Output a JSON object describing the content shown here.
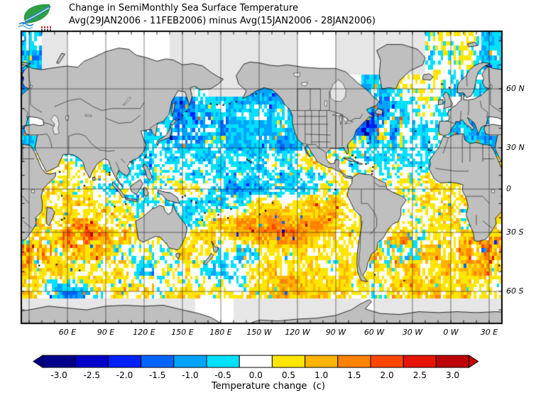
{
  "header": {
    "line1": "Change in SemiMonthly Sea Surface Temperature",
    "line2": "Avg(29JAN2006 - 11FEB2006) minus Avg(15JAN2006 - 28JAN2006)"
  },
  "logo": {
    "icon": "grads-cola-leaf-logo"
  },
  "map": {
    "lon_ticks": [
      {
        "label": "60 E",
        "lon": 60
      },
      {
        "label": "90 E",
        "lon": 90
      },
      {
        "label": "120 E",
        "lon": 120
      },
      {
        "label": "150 E",
        "lon": 150
      },
      {
        "label": "180 E",
        "lon": 180
      },
      {
        "label": "150 W",
        "lon": 210
      },
      {
        "label": "120 W",
        "lon": 240
      },
      {
        "label": "90 W",
        "lon": 270
      },
      {
        "label": "60 W",
        "lon": 300
      },
      {
        "label": "30 W",
        "lon": 330
      },
      {
        "label": "0 W",
        "lon": 360
      },
      {
        "label": "30 E",
        "lon": 390
      }
    ],
    "lat_ticks": [
      {
        "label": "60 N",
        "lat": 60
      },
      {
        "label": "30 N",
        "lat": 30
      },
      {
        "label": "0",
        "lat": 0
      },
      {
        "label": "30 S",
        "lat": -30
      },
      {
        "label": "60 S",
        "lat": -60
      }
    ]
  },
  "colorbar": {
    "tick_labels": [
      "-3.0",
      "-2.5",
      "-2.0",
      "-1.5",
      "-1.0",
      "-0.5",
      "0.0",
      "0.5",
      "1.0",
      "1.5",
      "2.0",
      "2.5",
      "3.0"
    ],
    "caption": "Temperature change  (c)",
    "segment_colors": [
      "#00008B",
      "#0000CD",
      "#0020FF",
      "#0064FF",
      "#00A4FF",
      "#00E0FF",
      "#FFFFFF",
      "#FFE600",
      "#FFB400",
      "#FF8200",
      "#FF4600",
      "#E41400",
      "#BE0000"
    ],
    "arrow_left_color": "#00008B",
    "arrow_right_color": "#C80000"
  },
  "chart_data": {
    "type": "heatmap",
    "title": "Change in SemiMonthly Sea Surface Temperature",
    "subtitle": "Avg(29JAN2006 - 11FEB2006) minus Avg(15JAN2006 - 28JAN2006)",
    "units": "c",
    "projection": "cylindrical, Pacific-centered",
    "lon_range": [
      24,
      400
    ],
    "lat_range": [
      -78,
      84
    ],
    "grid_line_interval_deg": 30,
    "levels": [
      -3.0,
      -2.5,
      -2.0,
      -1.5,
      -1.0,
      -0.5,
      0.0,
      0.5,
      1.0,
      1.5,
      2.0,
      2.5,
      3.0
    ],
    "colors": [
      "#00008B",
      "#0000CD",
      "#0020FF",
      "#0064FF",
      "#00A4FF",
      "#00E0FF",
      "#FFFFFF",
      "#FFE600",
      "#FFB400",
      "#FF8200",
      "#FF4600",
      "#E41400",
      "#BE0000"
    ],
    "land_color": "#BFBFBF",
    "no_data_color": "#E6E6E6",
    "ocean_color": "#FFFFFF",
    "land_value": null,
    "no_data_value": -9,
    "lon_centers": [
      25,
      35,
      45,
      55,
      65,
      75,
      85,
      95,
      105,
      115,
      125,
      135,
      145,
      155,
      165,
      175,
      185,
      195,
      205,
      215,
      225,
      235,
      245,
      255,
      265,
      275,
      285,
      295,
      305,
      315,
      325,
      335,
      345,
      355,
      365,
      375
    ],
    "lat_centers": [
      70,
      60,
      50,
      40,
      30,
      20,
      10,
      0,
      -10,
      -20,
      -30,
      -40,
      -50,
      -60,
      -70
    ],
    "values": [
      [
        -0.6,
        -0.6,
        -9,
        -9,
        null,
        null,
        null,
        null,
        null,
        null,
        null,
        null,
        -9,
        -9,
        -9,
        -9,
        -9,
        -9,
        -9,
        -9,
        -9,
        -9,
        null,
        null,
        null,
        -9,
        -9,
        -9,
        -9,
        -9,
        -9,
        -9,
        0.1,
        0.1,
        0.2,
        0.2
      ],
      [
        -0.8,
        null,
        null,
        null,
        null,
        null,
        null,
        null,
        null,
        null,
        null,
        null,
        -9,
        -9,
        -0.3,
        -9,
        -9,
        -9,
        -0.6,
        -0.6,
        -0.6,
        -0.4,
        null,
        null,
        null,
        null,
        null,
        -0.6,
        -0.4,
        -0.4,
        0.1,
        0.1,
        0.1,
        0.0,
        -0.2,
        -0.4
      ],
      [
        null,
        null,
        null,
        null,
        null,
        null,
        null,
        null,
        null,
        null,
        null,
        null,
        -1.1,
        -1.2,
        -0.9,
        -0.7,
        -0.6,
        -0.5,
        -0.5,
        -0.5,
        -0.4,
        -0.4,
        -0.3,
        null,
        null,
        null,
        null,
        -0.8,
        -1.3,
        -1.0,
        -0.4,
        -0.2,
        -0.1,
        -0.3,
        null,
        null
      ],
      [
        -0.7,
        null,
        null,
        null,
        null,
        null,
        null,
        null,
        null,
        null,
        -0.4,
        -0.6,
        -0.9,
        -0.8,
        -0.7,
        -0.6,
        -0.5,
        -0.5,
        -0.6,
        -0.7,
        -0.8,
        -0.7,
        -0.4,
        null,
        null,
        null,
        -0.6,
        -1.6,
        -1.2,
        -0.5,
        -0.3,
        -0.3,
        -0.3,
        -0.4,
        -0.7,
        -0.7
      ],
      [
        -0.8,
        -0.6,
        null,
        null,
        null,
        null,
        null,
        null,
        null,
        null,
        -0.3,
        -0.3,
        -0.3,
        -0.4,
        -0.5,
        -0.6,
        -0.6,
        -0.7,
        -0.7,
        -0.8,
        -0.8,
        -0.7,
        -0.5,
        -0.2,
        0.2,
        0.1,
        -0.2,
        -0.3,
        -0.4,
        -0.4,
        -0.4,
        -0.5,
        -0.4,
        -0.3,
        -0.6,
        -0.6
      ],
      [
        null,
        0.2,
        null,
        0.3,
        0.3,
        0.2,
        0.2,
        0.2,
        null,
        -0.4,
        -0.3,
        -0.3,
        -0.3,
        -0.3,
        -0.4,
        -0.4,
        -0.4,
        -0.4,
        -0.3,
        -0.3,
        -0.2,
        0.0,
        0.3,
        0.6,
        0.5,
        -0.2,
        -0.3,
        -0.3,
        -0.4,
        -0.4,
        -0.3,
        -0.4,
        -0.4,
        null,
        null,
        null
      ],
      [
        null,
        null,
        0.3,
        0.4,
        0.3,
        0.3,
        0.3,
        0.2,
        -0.2,
        -0.3,
        -0.2,
        -0.2,
        -0.2,
        -0.2,
        -0.3,
        -0.3,
        -0.3,
        -0.3,
        -0.4,
        -0.5,
        -0.5,
        -0.5,
        -0.5,
        -0.4,
        0.4,
        0.2,
        0.1,
        0.2,
        0.2,
        0.2,
        0.2,
        0.3,
        0.4,
        0.5,
        0.5,
        null
      ],
      [
        null,
        null,
        0.4,
        0.4,
        0.3,
        0.2,
        0.1,
        -0.3,
        -0.3,
        -0.3,
        -0.3,
        -0.2,
        0.4,
        0.5,
        0.4,
        -0.4,
        -0.8,
        -0.8,
        -0.7,
        -0.6,
        -0.4,
        -0.4,
        -0.3,
        0.0,
        0.2,
        0.2,
        null,
        null,
        null,
        0.2,
        0.3,
        0.3,
        0.4,
        0.5,
        0.6,
        null
      ],
      [
        null,
        0.4,
        0.5,
        0.5,
        0.5,
        0.4,
        0.4,
        0.2,
        -0.1,
        -0.2,
        -0.2,
        -0.2,
        -0.5,
        -0.8,
        -0.7,
        -0.5,
        -0.4,
        -0.3,
        0.2,
        0.3,
        0.4,
        0.4,
        0.6,
        0.8,
        0.7,
        0.4,
        null,
        null,
        null,
        null,
        0.2,
        0.2,
        0.3,
        0.3,
        0.4,
        0.4
      ],
      [
        null,
        0.5,
        0.5,
        0.6,
        0.7,
        0.6,
        0.5,
        0.4,
        0.3,
        0.3,
        null,
        null,
        -0.4,
        -0.6,
        0.2,
        0.5,
        0.7,
        0.9,
        1.0,
        1.0,
        1.0,
        1.0,
        1.0,
        0.9,
        0.8,
        0.5,
        0.3,
        null,
        null,
        0.2,
        0.3,
        0.2,
        0.3,
        0.3,
        0.3,
        0.3
      ],
      [
        null,
        0.5,
        0.6,
        0.9,
        1.4,
        1.4,
        1.2,
        0.8,
        0.5,
        0.3,
        -0.4,
        -0.3,
        null,
        0.3,
        0.4,
        0.5,
        0.8,
        1.2,
        1.3,
        1.4,
        1.4,
        1.3,
        1.3,
        1.2,
        1.0,
        0.6,
        0.3,
        null,
        null,
        0.4,
        0.4,
        0.4,
        0.4,
        0.4,
        0.4,
        0.3
      ],
      [
        0.7,
        0.7,
        0.6,
        0.6,
        0.6,
        0.6,
        0.5,
        0.4,
        0.3,
        0.2,
        0.2,
        0.0,
        0.3,
        0.5,
        0.4,
        0.4,
        -0.3,
        -0.5,
        -0.4,
        0.2,
        0.4,
        0.5,
        0.4,
        0.3,
        0.2,
        0.2,
        0.1,
        0.1,
        0.1,
        0.2,
        0.4,
        0.5,
        0.5,
        0.5,
        0.6,
        0.7
      ],
      [
        0.7,
        0.7,
        0.7,
        0.7,
        0.6,
        0.6,
        0.5,
        0.4,
        0.2,
        -0.5,
        -0.5,
        -0.2,
        0.3,
        0.3,
        -0.4,
        -0.6,
        -0.6,
        -0.3,
        0.3,
        0.5,
        0.6,
        0.6,
        0.6,
        0.6,
        0.5,
        0.3,
        0.2,
        0.3,
        0.4,
        0.5,
        0.6,
        0.6,
        0.6,
        0.6,
        0.7,
        0.7
      ],
      [
        0.5,
        0.4,
        -0.4,
        -1.0,
        -1.1,
        -0.5,
        0.3,
        0.4,
        0.4,
        0.4,
        0.3,
        0.3,
        0.3,
        0.4,
        0.2,
        0.2,
        0.3,
        0.3,
        0.4,
        0.5,
        0.7,
        0.9,
        0.9,
        0.8,
        0.6,
        0.4,
        0.3,
        0.2,
        0.3,
        0.4,
        0.6,
        0.8,
        0.7,
        0.6,
        0.6,
        0.5
      ],
      [
        -9,
        -9,
        -9,
        -9,
        -9,
        -9,
        -9,
        -9,
        -9,
        -9,
        -9,
        -9,
        -9,
        -9,
        null,
        null,
        null,
        -9,
        -9,
        -9,
        -9,
        -9,
        -9,
        -9,
        -9,
        -9,
        -9,
        null,
        -9,
        -9,
        -9,
        -9,
        -9,
        -9,
        -9,
        -9
      ]
    ]
  }
}
